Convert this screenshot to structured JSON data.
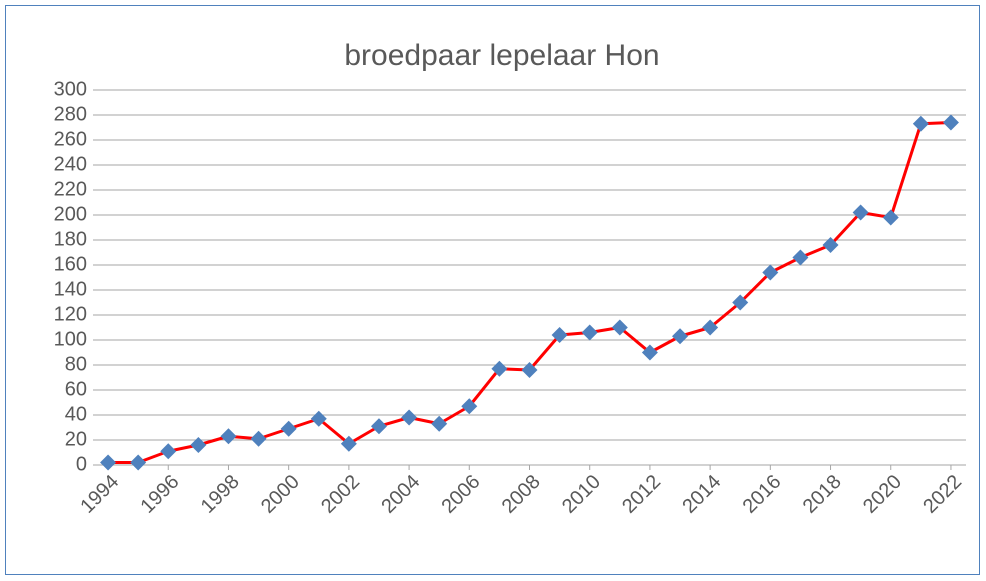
{
  "chart_data": {
    "type": "line",
    "title": "broedpaar lepelaar Hon",
    "x": [
      1994,
      1995,
      1996,
      1997,
      1998,
      1999,
      2000,
      2001,
      2002,
      2003,
      2004,
      2005,
      2006,
      2007,
      2008,
      2009,
      2010,
      2011,
      2012,
      2013,
      2014,
      2015,
      2016,
      2017,
      2018,
      2019,
      2020,
      2021,
      2022
    ],
    "series": [
      {
        "name": "broedpaar lepelaar Hon",
        "color": "#ff0000",
        "marker_color": "#4f81bd",
        "values": [
          2,
          2,
          11,
          16,
          23,
          21,
          29,
          37,
          17,
          31,
          38,
          33,
          47,
          77,
          76,
          104,
          106,
          110,
          90,
          103,
          110,
          130,
          154,
          166,
          176,
          202,
          198,
          273,
          274
        ]
      }
    ],
    "xlim": [
      1993.5,
      2022.5
    ],
    "xticks": [
      1994,
      1996,
      1998,
      2000,
      2002,
      2004,
      2006,
      2008,
      2010,
      2012,
      2014,
      2016,
      2018,
      2020,
      2022
    ],
    "ylim": [
      0,
      300
    ],
    "yticks": [
      0,
      20,
      40,
      60,
      80,
      100,
      120,
      140,
      160,
      180,
      200,
      220,
      240,
      260,
      280,
      300
    ],
    "grid": true
  }
}
